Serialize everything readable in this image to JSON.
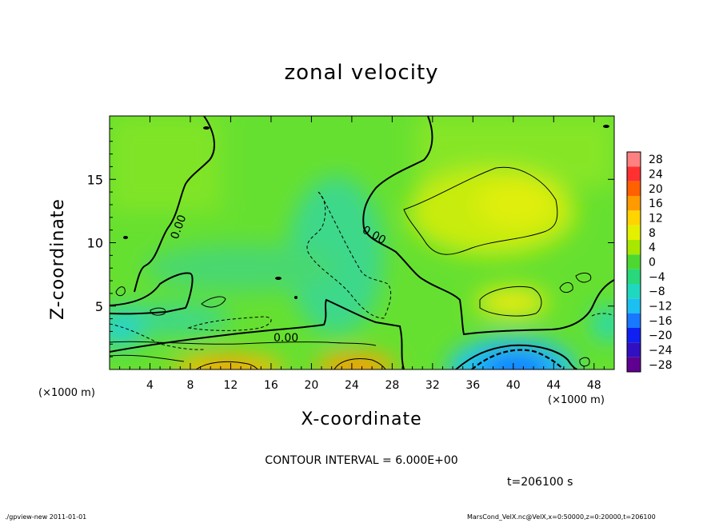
{
  "chart_data": {
    "type": "heatmap",
    "title": "zonal velocity",
    "xlabel": "X-coordinate",
    "ylabel": "Z-coordinate",
    "x_unit_left": "(×1000 m)",
    "x_unit_right": "(×1000 m)",
    "xlim": [
      0,
      50
    ],
    "ylim": [
      0,
      20
    ],
    "x_ticks": [
      4,
      8,
      12,
      16,
      20,
      24,
      28,
      32,
      36,
      40,
      44,
      48
    ],
    "y_ticks": [
      5,
      10,
      15
    ],
    "contour_label": "0.00",
    "colorbar": {
      "levels": [
        28,
        24,
        20,
        16,
        12,
        8,
        4,
        0,
        -4,
        -8,
        -12,
        -16,
        -20,
        -24,
        -28
      ],
      "labels": [
        "28",
        "24",
        "20",
        "16",
        "12",
        "8",
        "4",
        "0",
        "−4",
        "−8",
        "−12",
        "−16",
        "−20",
        "−24",
        "−28"
      ],
      "colors": [
        "#ff8080",
        "#ff3030",
        "#ff6000",
        "#ff9a00",
        "#ffd400",
        "#e4f000",
        "#a8e800",
        "#4cd830",
        "#28d87a",
        "#20d8c0",
        "#1cc0f0",
        "#1878ff",
        "#1020f0",
        "#3010c0",
        "#600090"
      ]
    },
    "features": [
      {
        "x": 13,
        "z": 0.3,
        "value": 16
      },
      {
        "x": 24,
        "z": 0.4,
        "value": 16
      },
      {
        "x": 39,
        "z": 0.6,
        "value": -16
      },
      {
        "x": 39,
        "z": 13,
        "value": 8
      },
      {
        "x": 40,
        "z": 5.5,
        "value": 8
      },
      {
        "x": 22,
        "z": 10,
        "value": -8
      },
      {
        "x": 2,
        "z": 4,
        "value": -8
      }
    ]
  },
  "annotations": {
    "contour_interval": "CONTOUR INTERVAL = 6.000E+00",
    "time": "t=206100 s"
  },
  "footer": {
    "left": "./gpview-new  2011-01-01",
    "right": "MarsCond_VelX.nc@VelX,x=0:50000,z=0:20000,t=206100"
  }
}
